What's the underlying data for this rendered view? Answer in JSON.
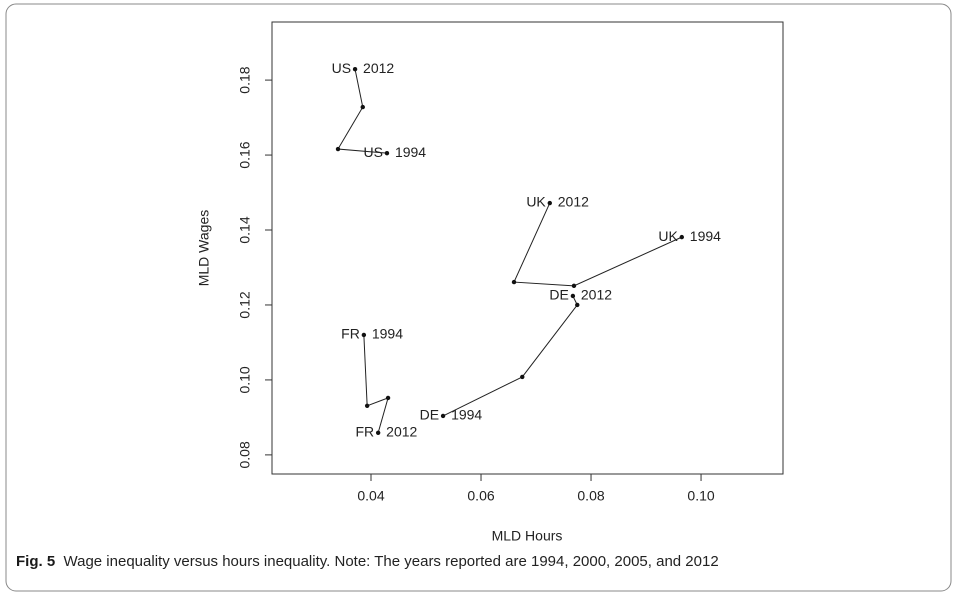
{
  "chart_data": {
    "type": "line",
    "xlabel": "MLD Hours",
    "ylabel": "MLD Wages",
    "xlim": [
      0.022,
      0.1149
    ],
    "ylim": [
      0.0749,
      0.1955
    ],
    "xticks": [
      0.04,
      0.06,
      0.08,
      {
        "value": 0.1,
        "label": "0.10"
      }
    ],
    "yticks": [
      0.08,
      {
        "value": 0.1,
        "label": "0.10"
      },
      0.12,
      0.14,
      0.16,
      0.18
    ],
    "series": [
      {
        "name": "US",
        "color": "#222222",
        "start_label": "1994",
        "end_label": "2012",
        "x": [
          0.0429,
          0.034,
          0.0385,
          0.0371
        ],
        "values": [
          0.1605,
          0.1616,
          0.1728,
          0.1829
        ]
      },
      {
        "name": "UK",
        "color": "#222222",
        "start_label": "1994",
        "end_label": "2012",
        "x": [
          0.0965,
          0.0769,
          0.066,
          0.0725
        ],
        "values": [
          0.1381,
          0.1251,
          0.1261,
          0.1472
        ]
      },
      {
        "name": "DE",
        "color": "#222222",
        "start_label": "1994",
        "end_label": "2012",
        "x": [
          0.0531,
          0.0675,
          0.0775,
          0.0767
        ],
        "values": [
          0.0904,
          0.1008,
          0.12,
          0.1224
        ]
      },
      {
        "name": "FR",
        "color": "#222222",
        "start_label": "1994",
        "end_label": "2012",
        "x": [
          0.0387,
          0.0393,
          0.0431,
          0.0413
        ],
        "values": [
          0.112,
          0.0931,
          0.0952,
          0.0859
        ]
      }
    ]
  },
  "caption": {
    "label": "Fig. 5",
    "text": "Wage inequality versus hours inequality. Note: The years reported are 1994, 2000, 2005, and 2012"
  }
}
